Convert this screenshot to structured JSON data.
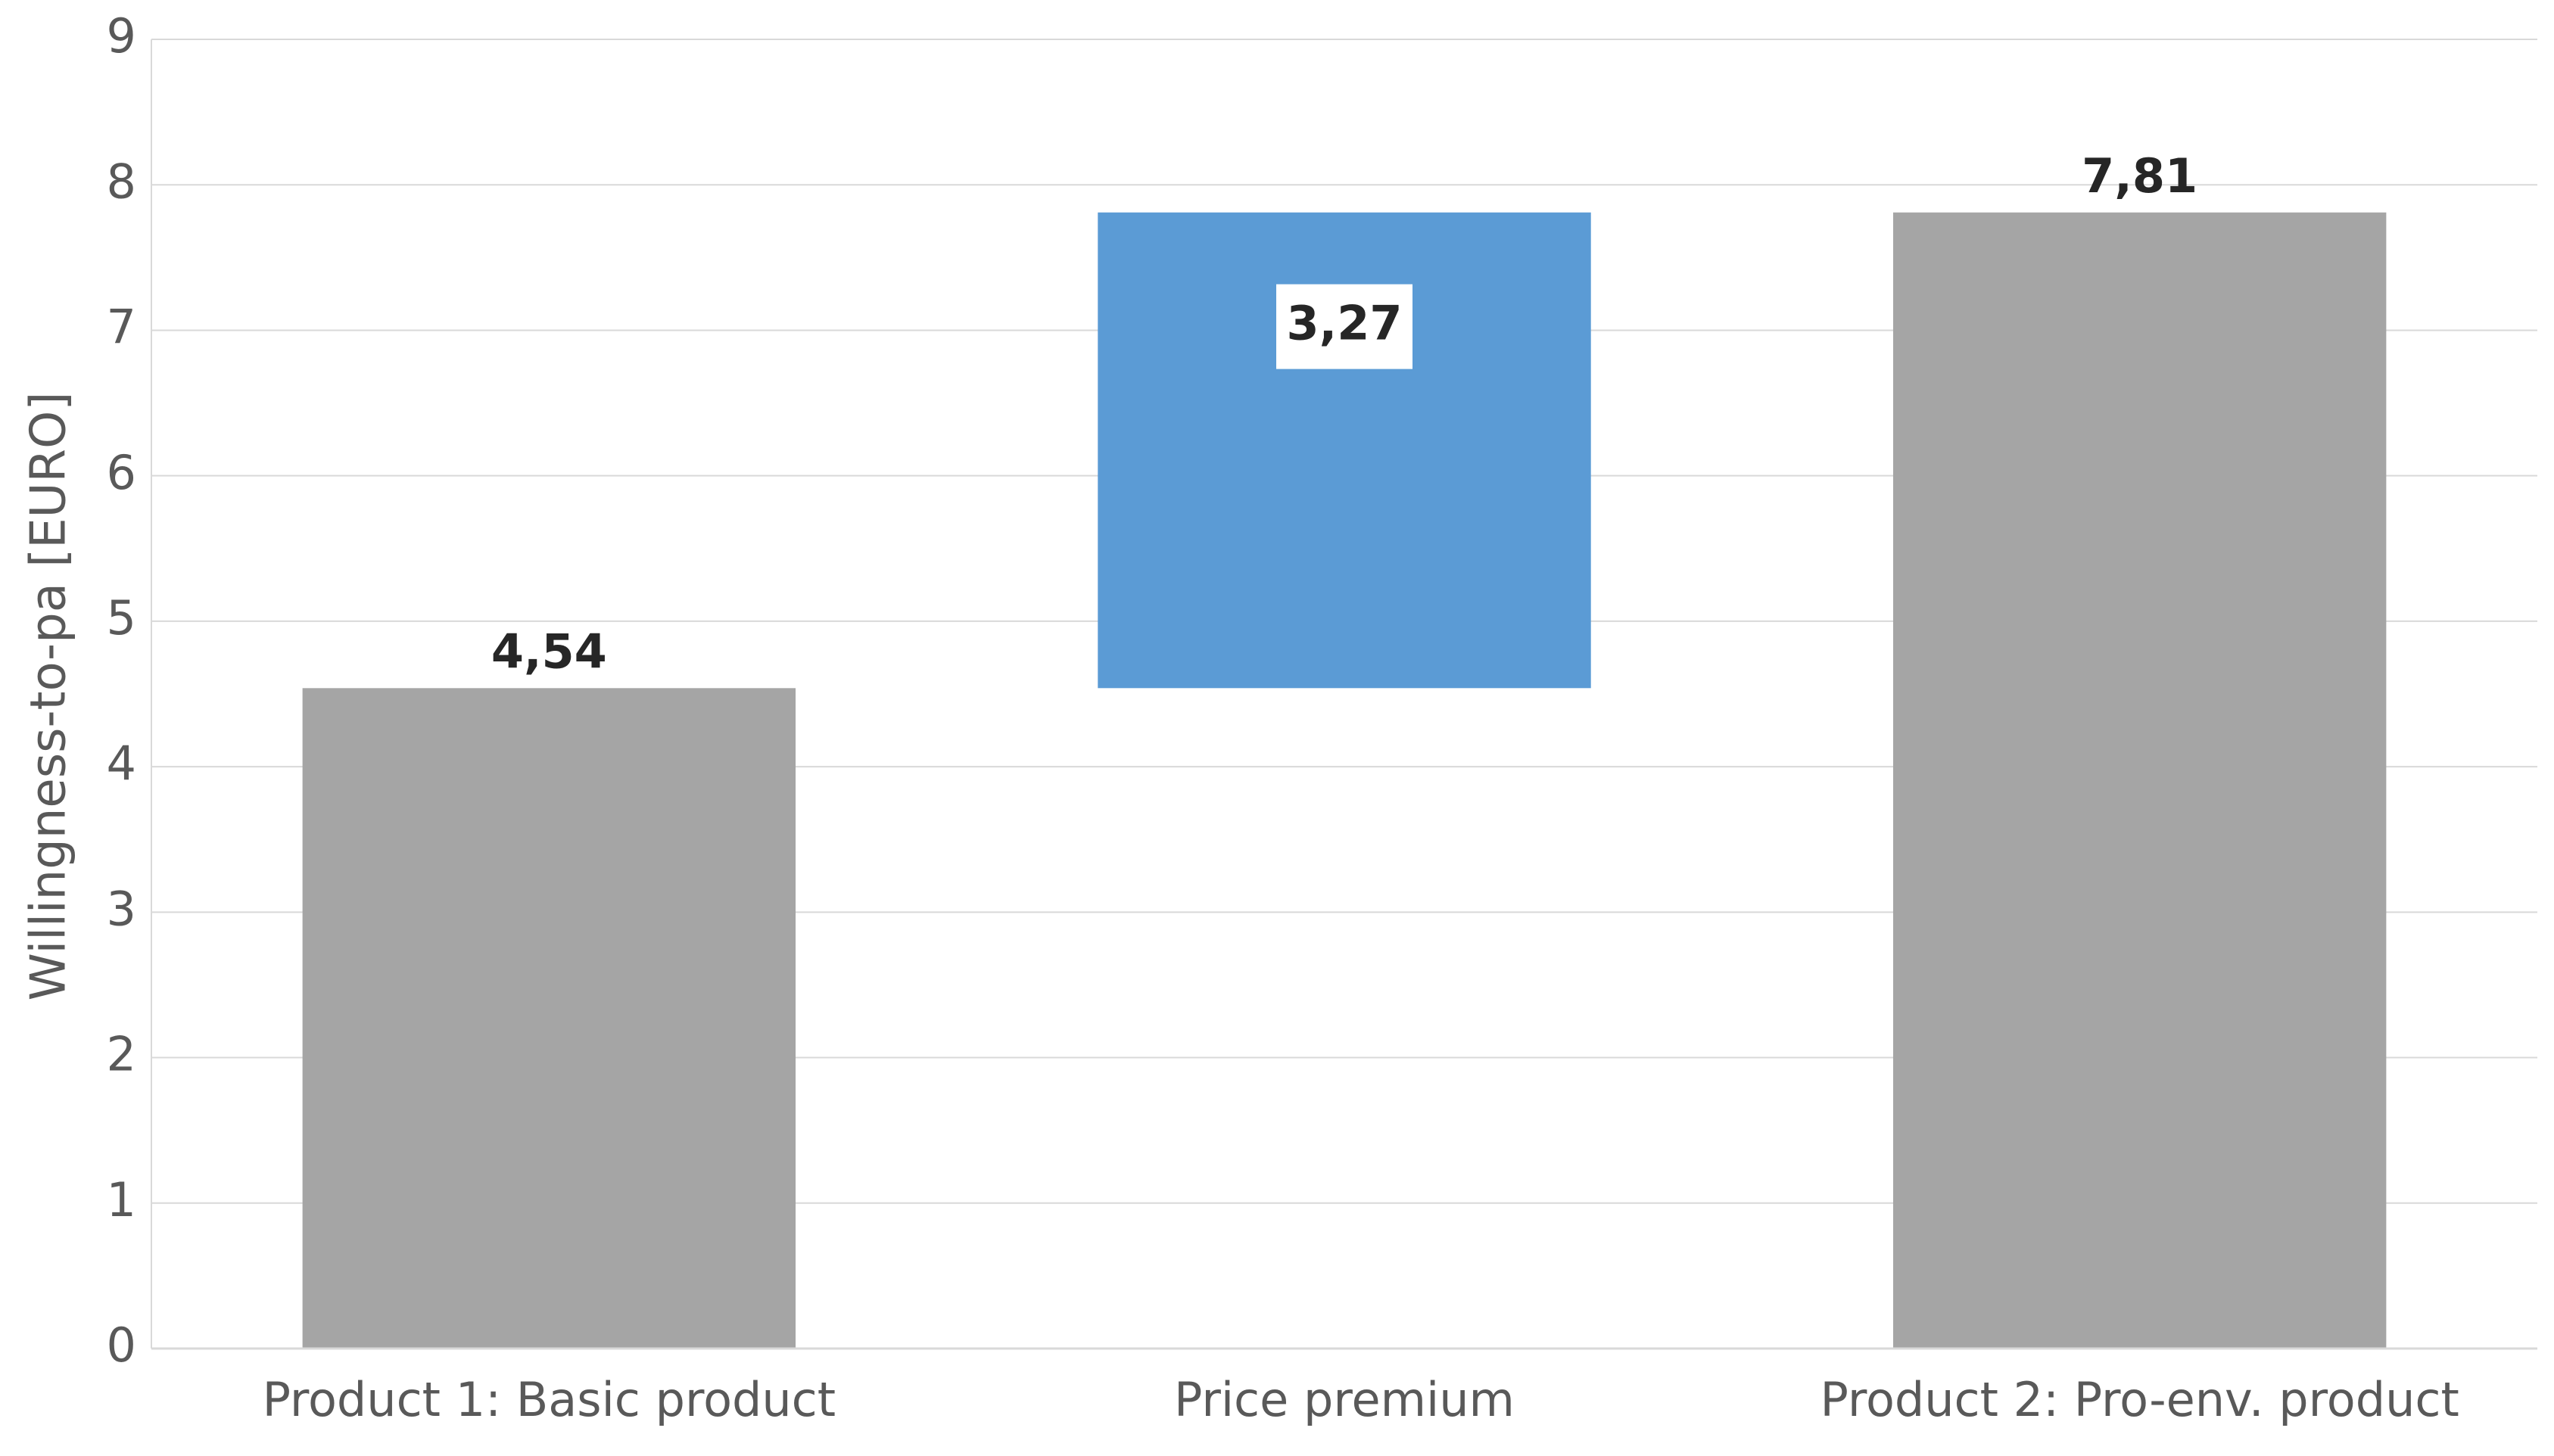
{
  "chart_data": {
    "type": "waterfall",
    "y_label": "Willingness-to-pa [EURO]",
    "categories": [
      "Product 1: Basic product",
      "Price premium",
      "Product 2: Pro-env. product"
    ],
    "measure": [
      "absolute",
      "relative",
      "total"
    ],
    "values": [
      4.54,
      3.27,
      7.81
    ],
    "value_labels": [
      "4,54",
      "3,27",
      "7,81"
    ],
    "colors": [
      "#a5a5a5",
      "#5b9bd5",
      "#a5a5a5"
    ],
    "ylim": [
      0,
      9
    ],
    "yticks": [
      0,
      1,
      2,
      3,
      4,
      5,
      6,
      7,
      8,
      9
    ],
    "grid": true
  }
}
